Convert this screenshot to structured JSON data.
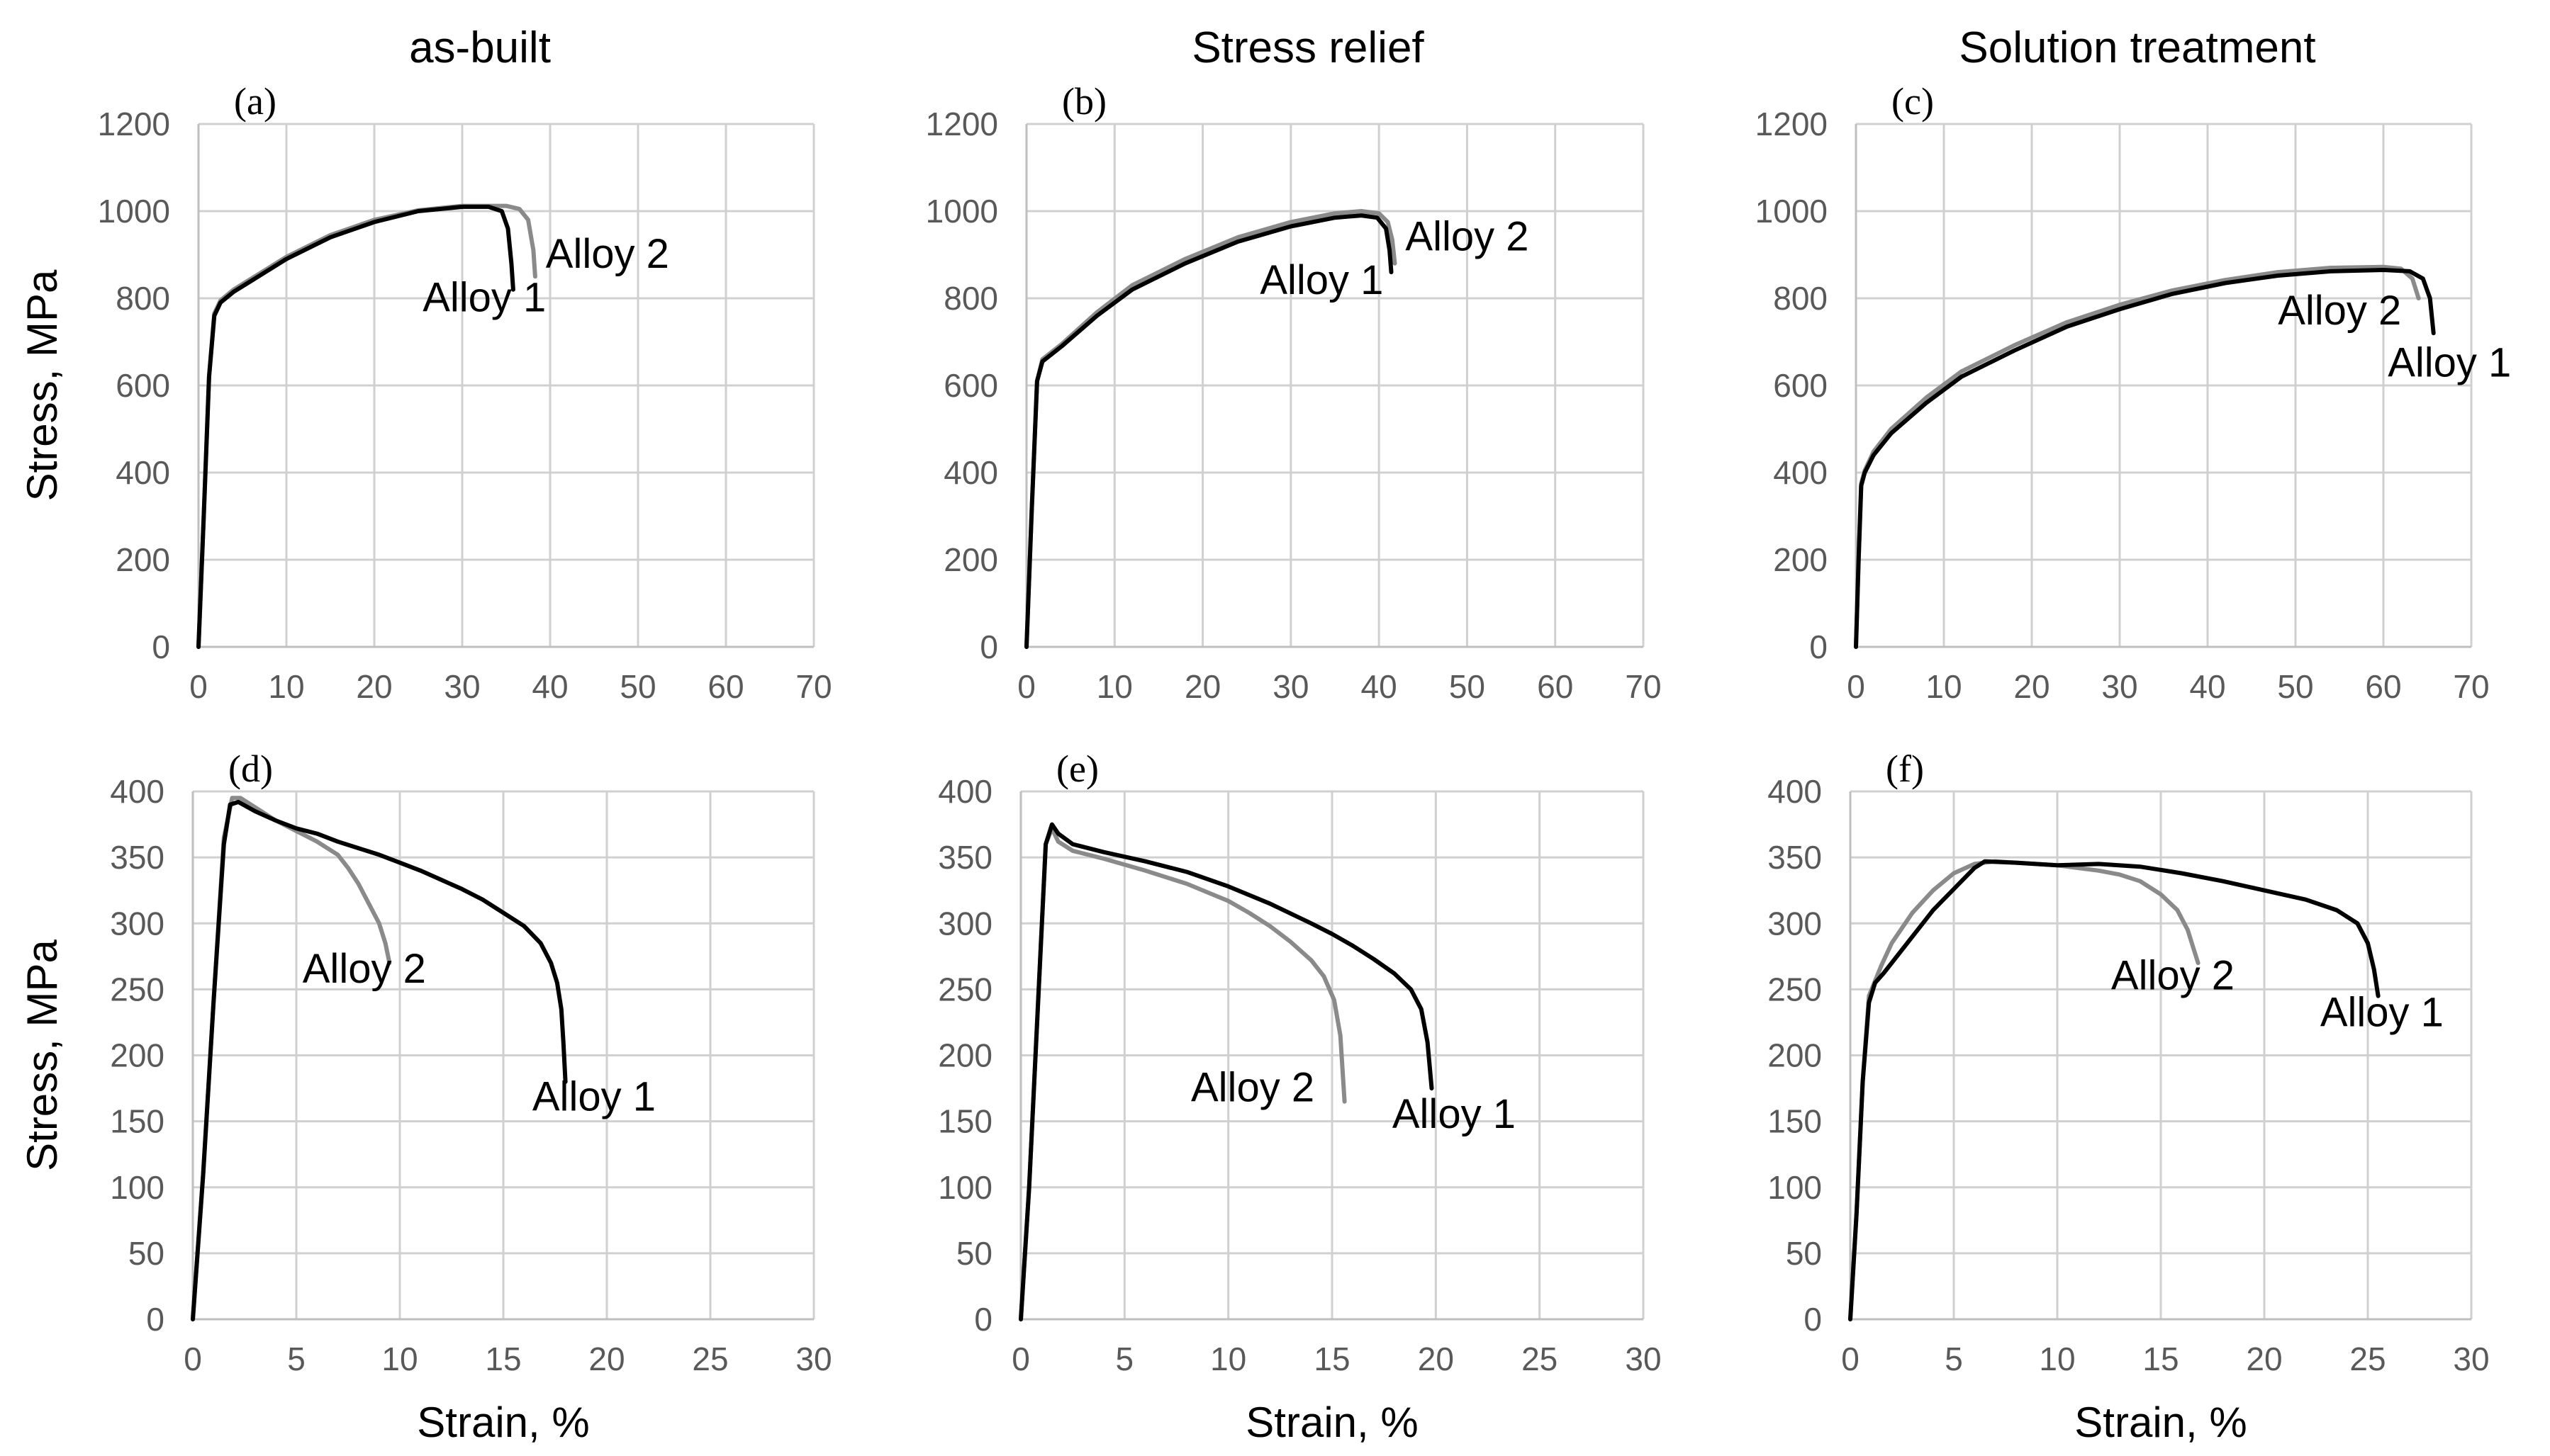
{
  "figure": {
    "column_titles": [
      "as-built",
      "Stress relief",
      "Solution treatment"
    ],
    "row_ylabel": "Stress, MPa",
    "xlabel_bottom": "Strain, %"
  },
  "colors": {
    "alloy1": "#000000",
    "alloy2": "#8a8a8a",
    "grid": "#d0d0d0",
    "tick_text": "#595959"
  },
  "chart_data": [
    {
      "type": "line",
      "panel": "(a)",
      "title": "as-built",
      "xlim": [
        0,
        70
      ],
      "ylim": [
        0,
        1200
      ],
      "xticks": [
        0,
        10,
        20,
        30,
        40,
        50,
        60,
        70
      ],
      "yticks": [
        0,
        200,
        400,
        600,
        800,
        1000,
        1200
      ],
      "ylabel": "Stress, MPa",
      "xlabel": "",
      "series": [
        {
          "name": "Alloy 1",
          "color": "#000000",
          "x": [
            0,
            0.6,
            1.2,
            1.8,
            2.5,
            4,
            6,
            10,
            15,
            20,
            25,
            30,
            33,
            34.5,
            35.2,
            35.6,
            35.8
          ],
          "y": [
            0,
            300,
            620,
            760,
            790,
            815,
            840,
            890,
            940,
            975,
            1000,
            1010,
            1010,
            1000,
            960,
            880,
            820
          ]
        },
        {
          "name": "Alloy 2",
          "color": "#8a8a8a",
          "x": [
            0,
            0.6,
            1.2,
            1.8,
            2.5,
            4,
            6,
            10,
            15,
            20,
            25,
            30,
            35,
            36.5,
            37.5,
            38.1,
            38.3
          ],
          "y": [
            0,
            300,
            620,
            765,
            795,
            820,
            845,
            895,
            945,
            980,
            1002,
            1012,
            1012,
            1005,
            980,
            910,
            850
          ]
        }
      ],
      "annotations": [
        {
          "text": "Alloy 1",
          "x": 25.5,
          "y": 770,
          "series": "Alloy 1"
        },
        {
          "text": "Alloy 2",
          "x": 39.5,
          "y": 870,
          "series": "Alloy 2"
        }
      ]
    },
    {
      "type": "line",
      "panel": "(b)",
      "title": "Stress relief",
      "xlim": [
        0,
        70
      ],
      "ylim": [
        0,
        1200
      ],
      "xticks": [
        0,
        10,
        20,
        30,
        40,
        50,
        60,
        70
      ],
      "yticks": [
        0,
        200,
        400,
        600,
        800,
        1000,
        1200
      ],
      "ylabel": "",
      "xlabel": "",
      "series": [
        {
          "name": "Alloy 1",
          "color": "#000000",
          "x": [
            0,
            0.6,
            1.2,
            1.8,
            4,
            8,
            12,
            18,
            24,
            30,
            35,
            38,
            39.8,
            40.8,
            41.2,
            41.4
          ],
          "y": [
            0,
            320,
            610,
            655,
            690,
            760,
            820,
            880,
            930,
            965,
            985,
            990,
            985,
            960,
            910,
            860
          ]
        },
        {
          "name": "Alloy 2",
          "color": "#8a8a8a",
          "x": [
            0,
            0.6,
            1.2,
            1.8,
            4,
            8,
            12,
            18,
            24,
            30,
            35,
            38,
            40,
            41,
            41.5,
            41.8
          ],
          "y": [
            0,
            320,
            610,
            660,
            695,
            768,
            830,
            890,
            940,
            975,
            995,
            1000,
            995,
            975,
            935,
            880
          ]
        }
      ],
      "annotations": [
        {
          "text": "Alloy 1",
          "x": 26.5,
          "y": 810,
          "series": "Alloy 1"
        },
        {
          "text": "Alloy 2",
          "x": 43,
          "y": 910,
          "series": "Alloy 2"
        }
      ]
    },
    {
      "type": "line",
      "panel": "(c)",
      "title": "Solution treatment",
      "xlim": [
        0,
        70
      ],
      "ylim": [
        0,
        1200
      ],
      "xticks": [
        0,
        10,
        20,
        30,
        40,
        50,
        60,
        70
      ],
      "yticks": [
        0,
        200,
        400,
        600,
        800,
        1000,
        1200
      ],
      "ylabel": "",
      "xlabel": "",
      "series": [
        {
          "name": "Alloy 1",
          "color": "#000000",
          "x": [
            0,
            0.3,
            0.6,
            1,
            2,
            4,
            8,
            12,
            18,
            24,
            30,
            36,
            42,
            48,
            54,
            60,
            63,
            64.5,
            65.3,
            65.7
          ],
          "y": [
            0,
            200,
            370,
            400,
            440,
            490,
            560,
            620,
            680,
            735,
            775,
            810,
            835,
            852,
            862,
            865,
            862,
            845,
            800,
            720
          ]
        },
        {
          "name": "Alloy 2",
          "color": "#8a8a8a",
          "x": [
            0,
            0.3,
            0.6,
            1,
            2,
            4,
            8,
            12,
            18,
            24,
            30,
            36,
            42,
            48,
            54,
            60,
            62,
            63.3,
            64
          ],
          "y": [
            0,
            200,
            375,
            405,
            448,
            500,
            572,
            632,
            692,
            745,
            785,
            818,
            842,
            860,
            870,
            872,
            868,
            845,
            800
          ]
        }
      ],
      "annotations": [
        {
          "text": "Alloy 2",
          "x": 48,
          "y": 740,
          "series": "Alloy 2"
        },
        {
          "text": "Alloy 1",
          "x": 60.5,
          "y": 620,
          "series": "Alloy 1"
        }
      ]
    },
    {
      "type": "line",
      "panel": "(d)",
      "title": "",
      "xlim": [
        0,
        30
      ],
      "ylim": [
        0,
        400
      ],
      "xticks": [
        0,
        5,
        10,
        15,
        20,
        25,
        30
      ],
      "yticks": [
        0,
        50,
        100,
        150,
        200,
        250,
        300,
        350,
        400
      ],
      "ylabel": "Stress, MPa",
      "xlabel": "Strain, %",
      "series": [
        {
          "name": "Alloy 1",
          "color": "#000000",
          "x": [
            0,
            0.5,
            1,
            1.5,
            1.8,
            2.2,
            3,
            4,
            5,
            6,
            7,
            8,
            9,
            10,
            11,
            12,
            13,
            14,
            15,
            16,
            16.8,
            17.3,
            17.6,
            17.8,
            17.9,
            18
          ],
          "y": [
            0,
            110,
            240,
            360,
            390,
            392,
            385,
            378,
            372,
            368,
            362,
            357,
            352,
            346,
            340,
            333,
            326,
            318,
            308,
            298,
            285,
            270,
            255,
            235,
            210,
            180
          ]
        },
        {
          "name": "Alloy 2",
          "color": "#8a8a8a",
          "x": [
            0,
            0.5,
            1,
            1.5,
            1.9,
            2.3,
            3,
            4,
            5,
            5.5,
            6,
            6.5,
            7,
            7.5,
            8,
            8.5,
            9,
            9.3,
            9.5
          ],
          "y": [
            0,
            110,
            240,
            365,
            395,
            395,
            388,
            378,
            370,
            366,
            362,
            357,
            352,
            342,
            330,
            315,
            300,
            285,
            270
          ]
        }
      ],
      "annotations": [
        {
          "text": "Alloy 2",
          "x": 5.3,
          "y": 255,
          "series": "Alloy 2"
        },
        {
          "text": "Alloy 1",
          "x": 16.4,
          "y": 158,
          "series": "Alloy 1"
        }
      ]
    },
    {
      "type": "line",
      "panel": "(e)",
      "title": "",
      "xlim": [
        0,
        30
      ],
      "ylim": [
        0,
        400
      ],
      "xticks": [
        0,
        5,
        10,
        15,
        20,
        25,
        30
      ],
      "yticks": [
        0,
        50,
        100,
        150,
        200,
        250,
        300,
        350,
        400
      ],
      "ylabel": "",
      "xlabel": "Strain, %",
      "series": [
        {
          "name": "Alloy 1",
          "color": "#000000",
          "x": [
            0,
            0.4,
            0.8,
            1.2,
            1.5,
            1.8,
            2.5,
            4,
            6,
            8,
            10,
            12,
            14,
            15,
            16,
            17,
            18,
            18.8,
            19.3,
            19.6,
            19.8
          ],
          "y": [
            0,
            100,
            230,
            360,
            375,
            368,
            360,
            354,
            347,
            339,
            328,
            315,
            300,
            292,
            283,
            273,
            262,
            250,
            235,
            210,
            175
          ]
        },
        {
          "name": "Alloy 2",
          "color": "#8a8a8a",
          "x": [
            0,
            0.4,
            0.8,
            1.2,
            1.5,
            1.8,
            2.5,
            4,
            6,
            8,
            10,
            11,
            12,
            13,
            14,
            14.6,
            15.1,
            15.4,
            15.6
          ],
          "y": [
            0,
            100,
            230,
            360,
            372,
            362,
            355,
            349,
            340,
            330,
            317,
            308,
            298,
            286,
            272,
            260,
            242,
            215,
            165
          ]
        }
      ],
      "annotations": [
        {
          "text": "Alloy 2",
          "x": 8.2,
          "y": 165,
          "series": "Alloy 2"
        },
        {
          "text": "Alloy 1",
          "x": 17.9,
          "y": 145,
          "series": "Alloy 1"
        }
      ]
    },
    {
      "type": "line",
      "panel": "(f)",
      "title": "",
      "xlim": [
        0,
        30
      ],
      "ylim": [
        0,
        400
      ],
      "xticks": [
        0,
        5,
        10,
        15,
        20,
        25,
        30
      ],
      "yticks": [
        0,
        50,
        100,
        150,
        200,
        250,
        300,
        350,
        400
      ],
      "ylabel": "",
      "xlabel": "Strain, %",
      "series": [
        {
          "name": "Alloy 1",
          "color": "#000000",
          "x": [
            0,
            0.3,
            0.6,
            0.9,
            1.2,
            1.6,
            2,
            2.5,
            3,
            3.5,
            4,
            4.5,
            5,
            5.5,
            6,
            6.5,
            8,
            10,
            12,
            14,
            16,
            18,
            20,
            22,
            23.5,
            24.5,
            25,
            25.3,
            25.5
          ],
          "y": [
            0,
            80,
            180,
            240,
            255,
            262,
            270,
            280,
            290,
            300,
            310,
            318,
            326,
            334,
            342,
            347,
            346,
            344,
            345,
            343,
            338,
            332,
            325,
            318,
            310,
            300,
            285,
            265,
            245
          ]
        },
        {
          "name": "Alloy 2",
          "color": "#8a8a8a",
          "x": [
            0,
            0.3,
            0.6,
            0.9,
            1.5,
            2,
            3,
            4,
            5,
            6,
            7,
            8,
            10,
            12,
            13,
            14,
            15,
            15.8,
            16.3,
            16.6,
            16.8
          ],
          "y": [
            0,
            80,
            180,
            245,
            268,
            285,
            308,
            325,
            338,
            345,
            347,
            346,
            344,
            340,
            337,
            332,
            322,
            310,
            295,
            280,
            270
          ]
        }
      ],
      "annotations": [
        {
          "text": "Alloy 2",
          "x": 12.6,
          "y": 250,
          "series": "Alloy 2"
        },
        {
          "text": "Alloy 1",
          "x": 22.7,
          "y": 222,
          "series": "Alloy 1"
        }
      ]
    }
  ]
}
